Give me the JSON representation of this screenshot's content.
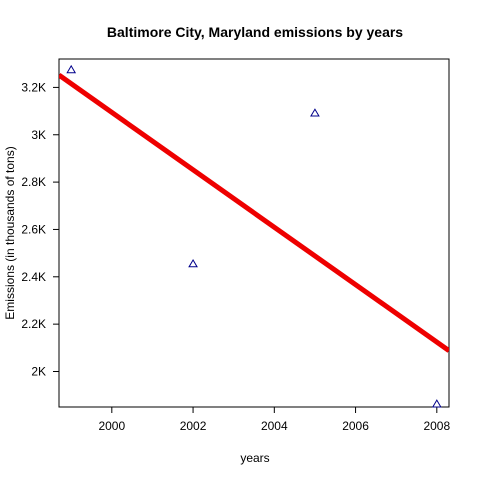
{
  "chart_data": {
    "type": "scatter",
    "title": "Baltimore City, Maryland emissions by years",
    "xlabel": "years",
    "ylabel": "Emissions (in thousands of tons)",
    "xlim": [
      1998.7,
      2008.3
    ],
    "ylim": [
      1850,
      3320
    ],
    "x_ticks": [
      2000,
      2002,
      2004,
      2006,
      2008
    ],
    "x_tick_labels": [
      "2000",
      "2002",
      "2004",
      "2006",
      "2008"
    ],
    "y_ticks": [
      2000,
      2200,
      2400,
      2600,
      2800,
      3000,
      3200
    ],
    "y_tick_labels": [
      "2K",
      "2.2K",
      "2.4K",
      "2.6K",
      "2.8K",
      "3K",
      "3.2K"
    ],
    "grid": false,
    "points": [
      {
        "x": 1999,
        "y": 3274
      },
      {
        "x": 2002,
        "y": 2454
      },
      {
        "x": 2005,
        "y": 3091
      },
      {
        "x": 2008,
        "y": 1862
      }
    ],
    "trend_line": {
      "x": [
        1998.7,
        2008.3
      ],
      "y": [
        3252,
        2088
      ]
    },
    "colors": {
      "points": "#00008b",
      "trend": "#ee0000"
    }
  }
}
